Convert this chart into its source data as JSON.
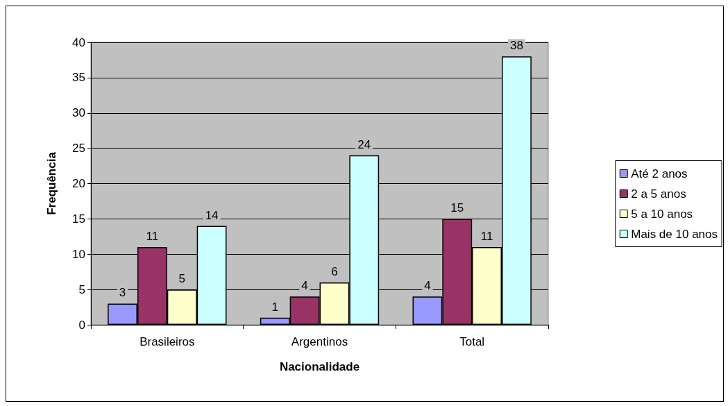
{
  "chart_data": {
    "type": "bar",
    "xlabel": "Nacionalidade",
    "ylabel": "Frequência",
    "categories": [
      "Brasileiros",
      "Argentinos",
      "Total"
    ],
    "series": [
      {
        "name": "Até 2 anos",
        "color": "#9999ff",
        "values": [
          3,
          1,
          4
        ]
      },
      {
        "name": "2 a 5 anos",
        "color": "#993366",
        "values": [
          11,
          4,
          15
        ]
      },
      {
        "name": "5 a 10 anos",
        "color": "#ffffcc",
        "values": [
          5,
          6,
          11
        ]
      },
      {
        "name": "Mais de 10 anos",
        "color": "#ccffff",
        "values": [
          14,
          24,
          38
        ]
      }
    ],
    "ylim": [
      0,
      40
    ],
    "yticks": [
      0,
      5,
      10,
      15,
      20,
      25,
      30,
      35,
      40
    ],
    "grid": "y",
    "legend": "right",
    "data_labels": true
  }
}
